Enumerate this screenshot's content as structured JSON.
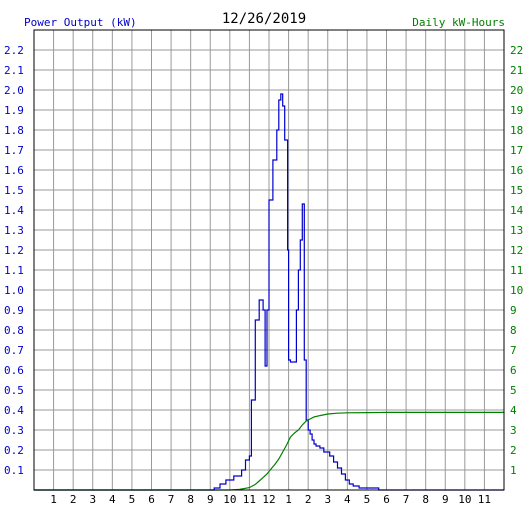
{
  "chart_data": {
    "type": "line",
    "title": "12/26/2019",
    "left_axis_label": "Power Output (kW)",
    "right_axis_label": "Daily kW-Hours",
    "colors": {
      "left_label": "#0000cc",
      "right_label": "#008000",
      "power_series": "#0000cc",
      "energy_series": "#008000",
      "grid": "#999999",
      "frame": "#000000"
    },
    "grid": true,
    "x_tick_labels": [
      "1",
      "2",
      "3",
      "4",
      "5",
      "6",
      "7",
      "8",
      "9",
      "10",
      "11",
      "12",
      "1",
      "2",
      "3",
      "4",
      "5",
      "6",
      "7",
      "8",
      "9",
      "10",
      "11"
    ],
    "x_range_hours": [
      0,
      24
    ],
    "ylim_left": [
      0,
      2.3
    ],
    "ylim_right": [
      0,
      23
    ],
    "left_tick_labels": [
      "0.1",
      "0.2",
      "0.3",
      "0.4",
      "0.5",
      "0.6",
      "0.7",
      "0.8",
      "0.9",
      "1.0",
      "1.1",
      "1.2",
      "1.3",
      "1.4",
      "1.5",
      "1.6",
      "1.7",
      "1.8",
      "1.9",
      "2.0",
      "2.1",
      "2.2"
    ],
    "right_tick_labels": [
      "1",
      "2",
      "3",
      "4",
      "5",
      "6",
      "7",
      "8",
      "9",
      "10",
      "11",
      "12",
      "13",
      "14",
      "15",
      "16",
      "17",
      "18",
      "19",
      "20",
      "21",
      "22"
    ],
    "series": [
      {
        "axis": "left",
        "step": true,
        "x": [
          0,
          8.8,
          9.2,
          9.5,
          9.8,
          10.2,
          10.6,
          10.8,
          11.0,
          11.1,
          11.3,
          11.5,
          11.7,
          11.8,
          11.9,
          12.0,
          12.2,
          12.4,
          12.5,
          12.6,
          12.7,
          12.8,
          12.95,
          13.0,
          13.1,
          13.3,
          13.4,
          13.5,
          13.6,
          13.7,
          13.8,
          13.9,
          14.0,
          14.1,
          14.2,
          14.3,
          14.4,
          14.6,
          14.8,
          15.1,
          15.3,
          15.5,
          15.7,
          15.9,
          16.1,
          16.3,
          16.6,
          17.0,
          17.5,
          17.6,
          24
        ],
        "y": [
          0,
          0,
          0.01,
          0.03,
          0.05,
          0.07,
          0.1,
          0.15,
          0.17,
          0.45,
          0.85,
          0.95,
          0.9,
          0.62,
          0.9,
          1.45,
          1.65,
          1.8,
          1.95,
          1.98,
          1.92,
          1.75,
          1.2,
          0.65,
          0.64,
          0.64,
          0.9,
          1.1,
          1.25,
          1.43,
          0.65,
          0.35,
          0.3,
          0.28,
          0.25,
          0.23,
          0.22,
          0.21,
          0.19,
          0.17,
          0.14,
          0.11,
          0.08,
          0.05,
          0.03,
          0.02,
          0.01,
          0.01,
          0.01,
          0,
          0
        ]
      },
      {
        "axis": "right",
        "step": false,
        "x": [
          0,
          10.0,
          10.5,
          11.0,
          11.3,
          11.5,
          11.7,
          11.9,
          12.1,
          12.3,
          12.5,
          12.7,
          12.9,
          13.1,
          13.3,
          13.5,
          13.7,
          13.9,
          14.1,
          14.3,
          14.6,
          15.0,
          15.5,
          16.0,
          17.0,
          18.0,
          20.0,
          22.0,
          24.0
        ],
        "y": [
          0,
          0,
          0.03,
          0.12,
          0.28,
          0.45,
          0.62,
          0.8,
          1.05,
          1.28,
          1.55,
          1.9,
          2.25,
          2.65,
          2.85,
          3.0,
          3.25,
          3.45,
          3.55,
          3.65,
          3.72,
          3.8,
          3.84,
          3.86,
          3.87,
          3.88,
          3.88,
          3.88,
          3.88
        ]
      }
    ]
  }
}
